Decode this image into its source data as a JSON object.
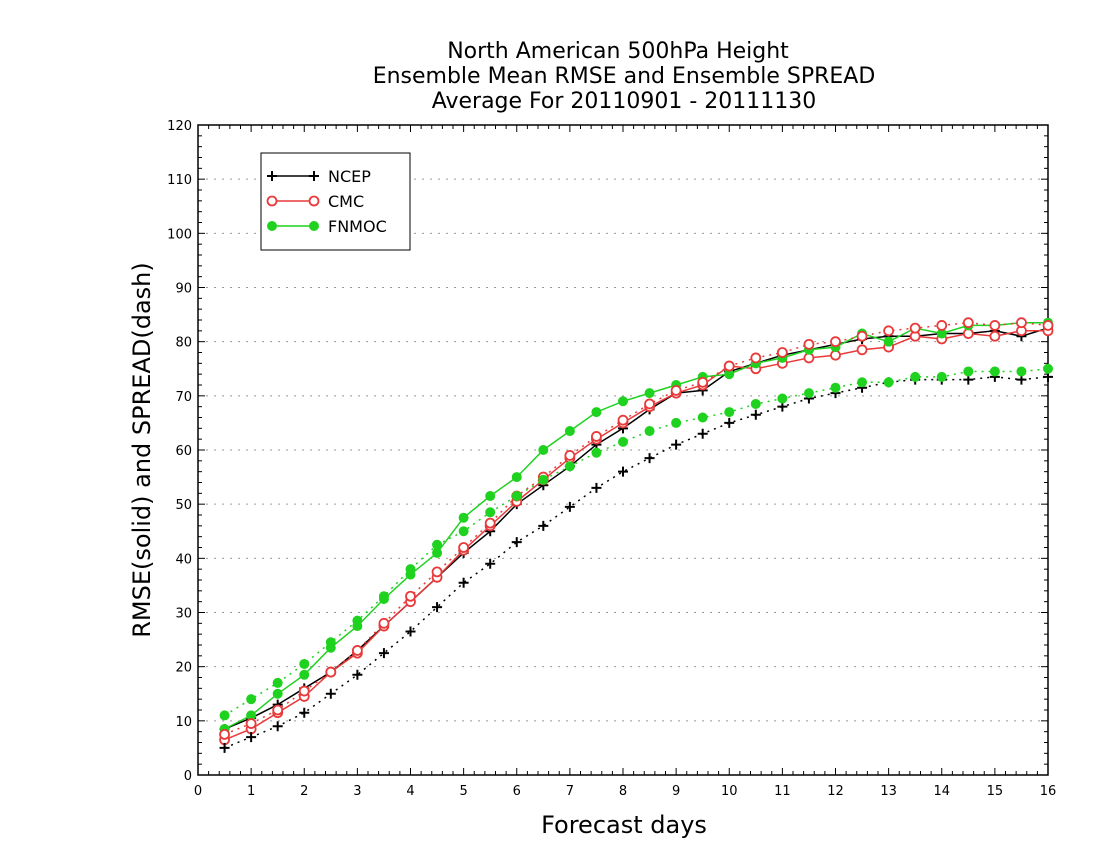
{
  "chart_data": {
    "type": "line",
    "title_lines": [
      "North American 500hPa Height",
      "Ensemble Mean RMSE and Ensemble SPREAD",
      "Average For 20110901 - 20111130"
    ],
    "xlabel": "Forecast days",
    "ylabel": "RMSE(solid) and SPREAD(dash)",
    "xlim": [
      0,
      16
    ],
    "ylim": [
      0,
      120
    ],
    "xticks": [
      0,
      1,
      2,
      3,
      4,
      5,
      6,
      7,
      8,
      9,
      10,
      11,
      12,
      13,
      14,
      15,
      16
    ],
    "yticks": [
      0,
      10,
      20,
      30,
      40,
      50,
      60,
      70,
      80,
      90,
      100,
      110,
      120
    ],
    "grid": "horizontal-dotted",
    "legend_position": "top-left",
    "x": [
      0.5,
      1,
      1.5,
      2,
      2.5,
      3,
      3.5,
      4,
      4.5,
      5,
      5.5,
      6,
      6.5,
      7,
      7.5,
      8,
      8.5,
      9,
      9.5,
      10,
      10.5,
      11,
      11.5,
      12,
      12.5,
      13,
      13.5,
      14,
      14.5,
      15,
      15.5,
      16
    ],
    "series": [
      {
        "name": "NCEP",
        "style": "solid",
        "color": "#000000",
        "marker": "plus",
        "values": [
          8.5,
          10.5,
          13,
          16,
          19,
          23,
          27.5,
          32,
          36.5,
          41,
          45,
          50,
          53.5,
          57,
          61,
          64,
          67.5,
          70.5,
          71,
          74.5,
          76,
          77.5,
          78.5,
          79.5,
          80.5,
          81,
          81,
          81.5,
          81.5,
          82,
          81,
          82.5
        ]
      },
      {
        "name": "CMC",
        "style": "solid",
        "color": "#e83a3a",
        "marker": "circle-open",
        "values": [
          6.5,
          8.5,
          11.5,
          14.5,
          19,
          22.5,
          27.5,
          32,
          36.5,
          41.5,
          46,
          50.5,
          54.5,
          58.5,
          62,
          65,
          68,
          70.5,
          72,
          75.5,
          75,
          76,
          77,
          77.5,
          78.5,
          79,
          81,
          80.5,
          81.5,
          81,
          82,
          82
        ]
      },
      {
        "name": "FNMOC",
        "style": "solid",
        "color": "#1fd21f",
        "marker": "circle-filled",
        "values": [
          8.5,
          11,
          15,
          18.5,
          23.5,
          27.5,
          32.5,
          37,
          41,
          47.5,
          51.5,
          55,
          60,
          63.5,
          67,
          69,
          70.5,
          72,
          73.5,
          74,
          76,
          77,
          78.5,
          79,
          81.5,
          80,
          82.5,
          81.5,
          83,
          83,
          83.5,
          83.5
        ]
      },
      {
        "name": "",
        "style": "dash",
        "color": "#000000",
        "marker": "plus",
        "values": [
          5,
          7,
          9,
          11.5,
          15,
          18.5,
          22.5,
          26.5,
          31,
          35.5,
          39,
          43,
          46,
          49.5,
          53,
          56,
          58.5,
          61,
          63,
          65,
          66.5,
          68,
          69.5,
          70.5,
          71.5,
          72.5,
          73,
          73,
          73,
          73.5,
          73,
          73.5
        ]
      },
      {
        "name": "",
        "style": "dash",
        "color": "#e83a3a",
        "marker": "circle-open",
        "values": [
          7.5,
          9.5,
          12,
          15.5,
          19,
          23,
          28,
          33,
          37.5,
          42,
          46.5,
          51.5,
          55,
          59,
          62.5,
          65.5,
          68.5,
          71,
          72.5,
          75.5,
          77,
          78,
          79.5,
          80,
          81,
          82,
          82.5,
          83,
          83.5,
          83,
          83.5,
          83
        ]
      },
      {
        "name": "",
        "style": "dash",
        "color": "#1fd21f",
        "marker": "circle-filled",
        "values": [
          11,
          14,
          17,
          20.5,
          24.5,
          28.5,
          33,
          38,
          42.5,
          45,
          48.5,
          51.5,
          54.5,
          57,
          59.5,
          61.5,
          63.5,
          65,
          66,
          67,
          68.5,
          69.5,
          70.5,
          71.5,
          72.5,
          72.5,
          73.5,
          73.5,
          74.5,
          74.5,
          74.5,
          75
        ]
      }
    ]
  }
}
